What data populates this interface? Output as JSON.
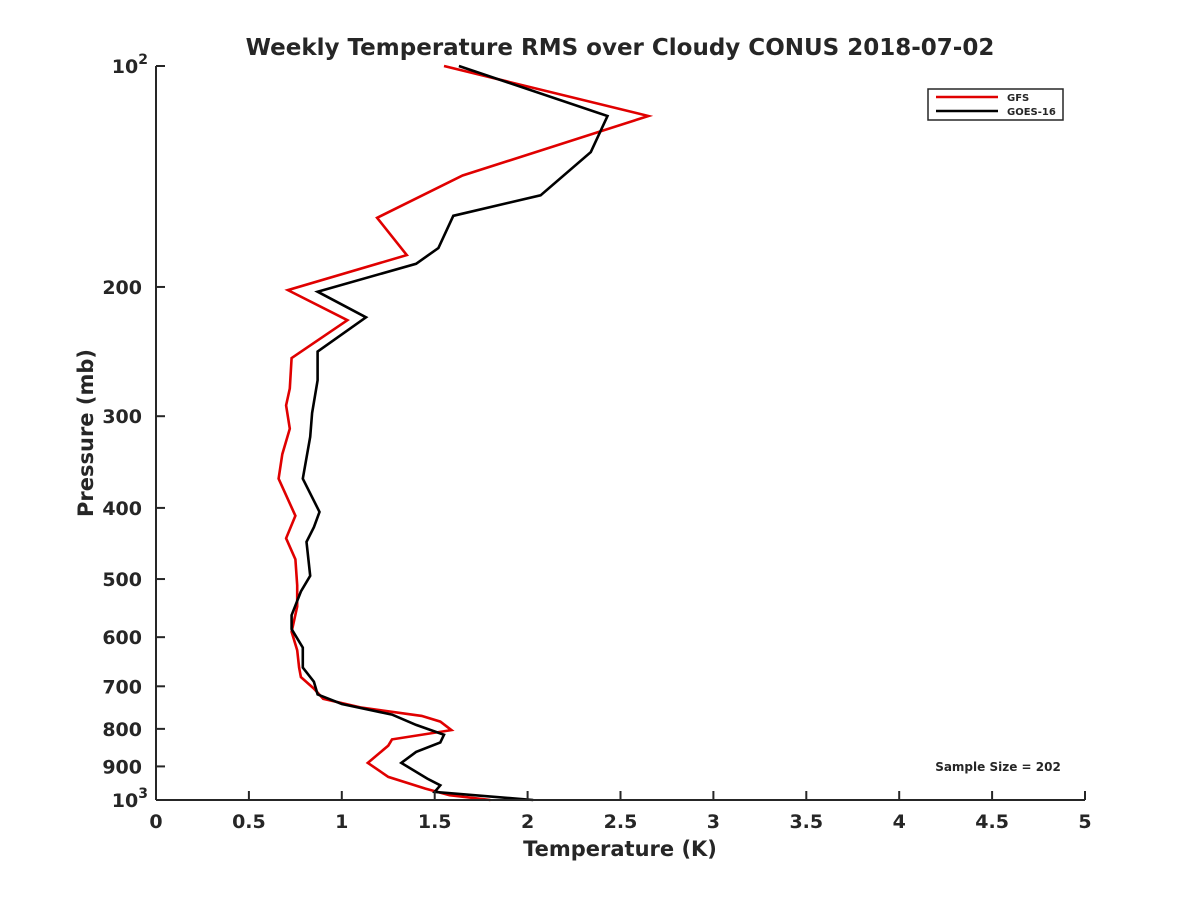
{
  "chart_data": {
    "type": "line",
    "title": "Weekly Temperature RMS over Cloudy CONUS 2018-07-02",
    "xlabel": "Temperature (K)",
    "ylabel": "Pressure (mb)",
    "xlim": [
      0,
      5
    ],
    "ylim": [
      100,
      1000
    ],
    "y_scale": "log",
    "y_reversed": true,
    "grid": false,
    "legend_position": "top-right",
    "x_ticks": [
      0,
      0.5,
      1,
      1.5,
      2,
      2.5,
      3,
      3.5,
      4,
      4.5,
      5
    ],
    "x_tick_labels": [
      "0",
      "0.5",
      "1",
      "1.5",
      "2",
      "2.5",
      "3",
      "3.5",
      "4",
      "4.5",
      "5"
    ],
    "y_ticks": [
      {
        "value": 100,
        "base": "10",
        "exp": "2"
      },
      {
        "value": 200,
        "label": "200"
      },
      {
        "value": 300,
        "label": "300"
      },
      {
        "value": 400,
        "label": "400"
      },
      {
        "value": 500,
        "label": "500"
      },
      {
        "value": 600,
        "label": "600"
      },
      {
        "value": 700,
        "label": "700"
      },
      {
        "value": 800,
        "label": "800"
      },
      {
        "value": 900,
        "label": "900"
      },
      {
        "value": 1000,
        "base": "10",
        "exp": "3"
      }
    ],
    "annotation": "Sample Size = 202",
    "series": [
      {
        "name": "GFS",
        "color": "#e00000",
        "points": [
          [
            1.55,
            100
          ],
          [
            2.65,
            117
          ],
          [
            1.65,
            141
          ],
          [
            1.19,
            161
          ],
          [
            1.35,
            181
          ],
          [
            0.71,
            202
          ],
          [
            1.03,
            222
          ],
          [
            0.73,
            250
          ],
          [
            0.72,
            275
          ],
          [
            0.7,
            290
          ],
          [
            0.72,
            312
          ],
          [
            0.68,
            338
          ],
          [
            0.66,
            365
          ],
          [
            0.75,
            410
          ],
          [
            0.7,
            440
          ],
          [
            0.75,
            470
          ],
          [
            0.76,
            510
          ],
          [
            0.76,
            545
          ],
          [
            0.73,
            590
          ],
          [
            0.76,
            625
          ],
          [
            0.77,
            660
          ],
          [
            0.78,
            680
          ],
          [
            0.85,
            705
          ],
          [
            0.9,
            728
          ],
          [
            1.1,
            748
          ],
          [
            1.43,
            768
          ],
          [
            1.53,
            782
          ],
          [
            1.59,
            803
          ],
          [
            1.27,
            827
          ],
          [
            1.25,
            843
          ],
          [
            1.14,
            890
          ],
          [
            1.25,
            930
          ],
          [
            1.45,
            965
          ],
          [
            1.58,
            985
          ],
          [
            1.8,
            1000
          ]
        ]
      },
      {
        "name": "GOES-16",
        "color": "#000000",
        "points": [
          [
            1.63,
            100
          ],
          [
            2.43,
            117
          ],
          [
            2.34,
            131
          ],
          [
            2.07,
            150
          ],
          [
            1.6,
            160
          ],
          [
            1.52,
            177
          ],
          [
            1.4,
            186
          ],
          [
            0.87,
            203
          ],
          [
            1.13,
            220
          ],
          [
            0.87,
            245
          ],
          [
            0.87,
            268
          ],
          [
            0.84,
            297
          ],
          [
            0.83,
            320
          ],
          [
            0.79,
            365
          ],
          [
            0.88,
            405
          ],
          [
            0.85,
            425
          ],
          [
            0.81,
            445
          ],
          [
            0.82,
            470
          ],
          [
            0.83,
            495
          ],
          [
            0.78,
            520
          ],
          [
            0.73,
            560
          ],
          [
            0.73,
            585
          ],
          [
            0.79,
            620
          ],
          [
            0.79,
            660
          ],
          [
            0.85,
            690
          ],
          [
            0.87,
            718
          ],
          [
            1.0,
            740
          ],
          [
            1.27,
            765
          ],
          [
            1.4,
            790
          ],
          [
            1.55,
            815
          ],
          [
            1.53,
            835
          ],
          [
            1.4,
            860
          ],
          [
            1.32,
            890
          ],
          [
            1.46,
            935
          ],
          [
            1.53,
            955
          ],
          [
            1.5,
            975
          ],
          [
            2.03,
            1000
          ]
        ]
      }
    ]
  }
}
